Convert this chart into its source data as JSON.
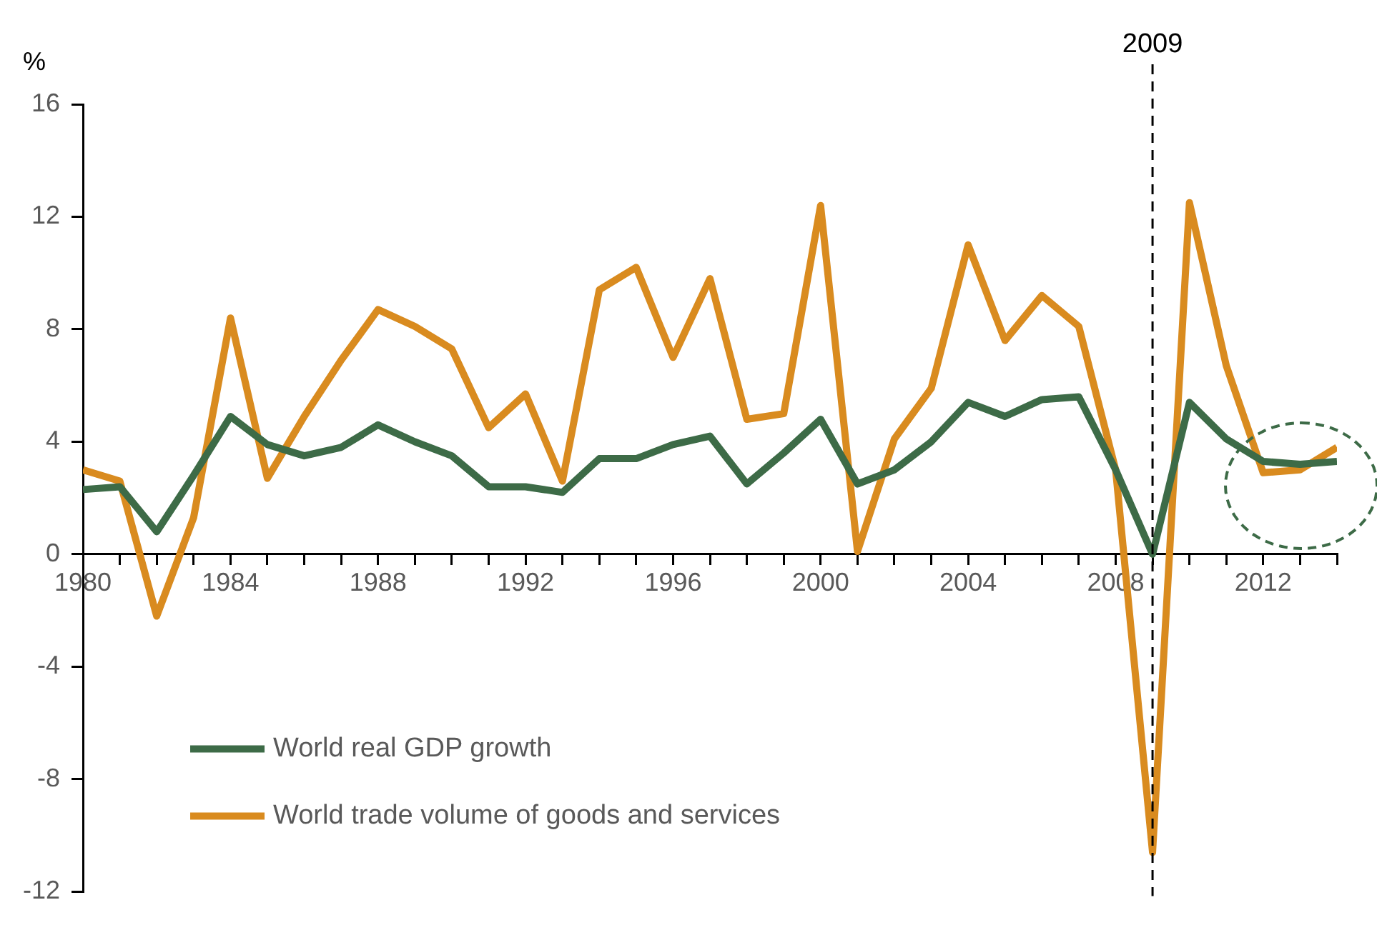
{
  "chart_data": {
    "type": "line",
    "ylabel": "%",
    "x": [
      1980,
      1981,
      1982,
      1983,
      1984,
      1985,
      1986,
      1987,
      1988,
      1989,
      1990,
      1991,
      1992,
      1993,
      1994,
      1995,
      1996,
      1997,
      1998,
      1999,
      2000,
      2001,
      2002,
      2003,
      2004,
      2005,
      2006,
      2007,
      2008,
      2009,
      2010,
      2011,
      2012,
      2013,
      2014
    ],
    "series": [
      {
        "name": "World real GDP growth",
        "color": "#3d6b47",
        "values": [
          2.3,
          2.4,
          0.8,
          2.8,
          4.9,
          3.9,
          3.5,
          3.8,
          4.6,
          4.0,
          3.5,
          2.4,
          2.4,
          2.2,
          3.4,
          3.4,
          3.9,
          4.2,
          2.5,
          3.6,
          4.8,
          2.5,
          3.0,
          4.0,
          5.4,
          4.9,
          5.5,
          5.6,
          3.0,
          0.0,
          5.4,
          4.1,
          3.3,
          3.2,
          3.3
        ]
      },
      {
        "name": "World trade volume of goods and services",
        "color": "#d98b1f",
        "values": [
          3.0,
          2.6,
          -2.2,
          1.3,
          8.4,
          2.7,
          4.9,
          6.9,
          8.7,
          8.1,
          7.3,
          4.5,
          5.7,
          2.6,
          9.4,
          10.2,
          7.0,
          9.8,
          4.8,
          5.0,
          12.4,
          0.1,
          4.1,
          5.9,
          11.0,
          7.6,
          9.2,
          8.1,
          3.0,
          -10.6,
          12.5,
          6.7,
          2.9,
          3.0,
          3.8
        ]
      }
    ],
    "xlim": [
      1980,
      2014
    ],
    "xticks": [
      1980,
      {
        "value": 1981,
        "label": null
      },
      {
        "value": 1982,
        "label": null
      },
      {
        "value": 1983,
        "label": null
      },
      1984,
      {
        "value": 1985,
        "label": null
      },
      {
        "value": 1986,
        "label": null
      },
      {
        "value": 1987,
        "label": null
      },
      1988,
      {
        "value": 1989,
        "label": null
      },
      {
        "value": 1990,
        "label": null
      },
      {
        "value": 1991,
        "label": null
      },
      1992,
      {
        "value": 1993,
        "label": null
      },
      {
        "value": 1994,
        "label": null
      },
      {
        "value": 1995,
        "label": null
      },
      1996,
      {
        "value": 1997,
        "label": null
      },
      {
        "value": 1998,
        "label": null
      },
      {
        "value": 1999,
        "label": null
      },
      2000,
      {
        "value": 2001,
        "label": null
      },
      {
        "value": 2002,
        "label": null
      },
      {
        "value": 2003,
        "label": null
      },
      2004,
      {
        "value": 2005,
        "label": null
      },
      {
        "value": 2006,
        "label": null
      },
      {
        "value": 2007,
        "label": null
      },
      2008,
      {
        "value": 2009,
        "label": null
      },
      {
        "value": 2010,
        "label": null
      },
      {
        "value": 2011,
        "label": null
      },
      2012,
      {
        "value": 2013,
        "label": null
      },
      {
        "value": 2014,
        "label": null
      }
    ],
    "ylim": [
      -12,
      16
    ],
    "yticks": [
      -12,
      -8,
      -4,
      0,
      4,
      8,
      12,
      16
    ],
    "ref_lines": [
      {
        "axis": "x",
        "value": 2009,
        "label": "2009",
        "color": "#000000",
        "line_style": "dashed"
      }
    ],
    "grid": false,
    "legend": "bottom left",
    "marker": "none",
    "line_style": "solid"
  }
}
